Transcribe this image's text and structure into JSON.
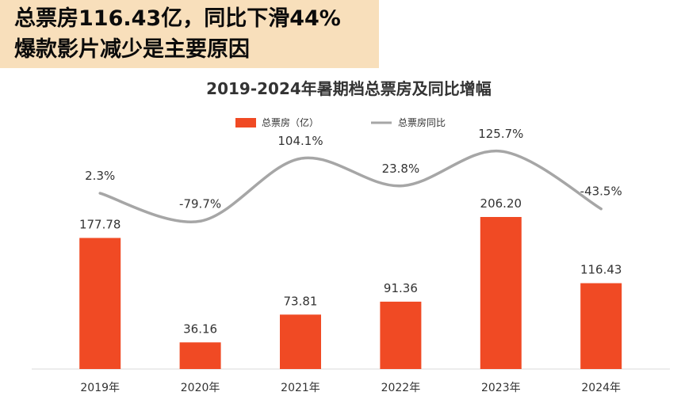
{
  "headline": {
    "line1": "总票房116.43亿，同比下滑44%",
    "line2": "爆款影片减少是主要原因"
  },
  "colors": {
    "bar": "#f04a24",
    "line": "#a6a6a6",
    "text": "#333333",
    "headline_bg": "#f8dfbb"
  },
  "chart_data": {
    "type": "bar",
    "title": "2019-2024年暑期档总票房及同比增幅",
    "categories": [
      "2019年",
      "2020年",
      "2021年",
      "2022年",
      "2023年",
      "2024年"
    ],
    "series": [
      {
        "name": "总票房（亿）",
        "type": "bar",
        "values": [
          177.78,
          36.16,
          73.81,
          91.36,
          206.2,
          116.43
        ],
        "labels": [
          "177.78",
          "36.16",
          "73.81",
          "91.36",
          "206.20",
          "116.43"
        ]
      },
      {
        "name": "总票房同比",
        "type": "line",
        "values": [
          2.3,
          -79.7,
          104.1,
          23.8,
          125.7,
          -43.5
        ],
        "labels": [
          "2.3%",
          "-79.7%",
          "104.1%",
          "23.8%",
          "125.7%",
          "-43.5%"
        ]
      }
    ],
    "ylim_bar": [
      0,
      250
    ],
    "ylim_line": [
      -200,
      175
    ],
    "legend_position": "top-center",
    "grid": false,
    "xlabel": "",
    "ylabel": ""
  }
}
